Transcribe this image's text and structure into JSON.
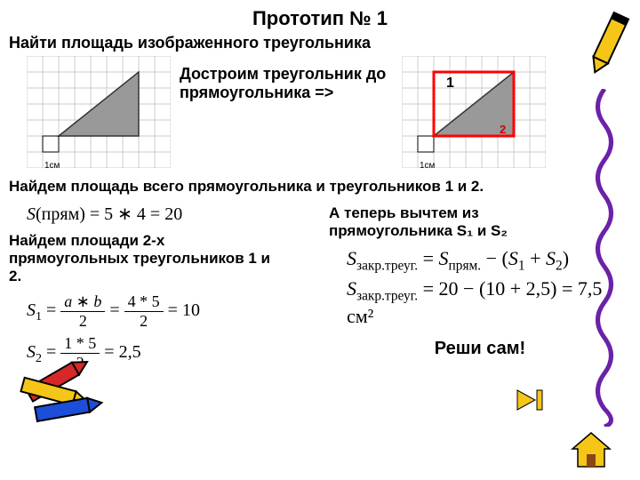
{
  "title": "Прототип № 1",
  "subtitle": "Найти площадь изображенного треугольника",
  "construct_text": "Достроим треугольник до прямоугольника  =>",
  "step1": "Найдем площадь всего прямоугольника и треугольников 1 и 2.",
  "formula_rect": "S(прям) = 5 * 4 = 20",
  "step2": "Найдем площади 2-х прямоугольных треугольников 1 и 2.",
  "step3_a": "А теперь вычтем из",
  "step3_b": "прямоугольника S₁ и S₂",
  "s1_lhs": "S",
  "s1_sub": "1",
  "s1_frac1_num": "a * b",
  "s1_frac1_den": "2",
  "s1_frac2_num": "4 * 5",
  "s1_frac2_den": "2",
  "s1_result": "10",
  "s2_lhs": "S",
  "s2_sub": "2",
  "s2_frac1_num": "1 * 5",
  "s2_frac1_den": "2",
  "s2_result": "2,5",
  "sf1_lhs": "S",
  "sf1_sub": "закр.треуг.",
  "sf1_rhs_a": "S",
  "sf1_rhs_a_sub": "прям.",
  "sf1_rhs_b": "S",
  "sf1_rhs_b_sub": "1",
  "sf1_rhs_c": "S",
  "sf1_rhs_c_sub": "2",
  "sf2_lhs": "S",
  "sf2_sub": "закр.треуг.",
  "sf2_rhs": "20 − (10 + 2,5) = 7,5",
  "unit": "см²",
  "solve": "Реши сам!",
  "grid": {
    "cell": 18,
    "cols": 9,
    "rows": 7,
    "stroke": "#cccccc",
    "tri_fill": "#999999",
    "tri_stroke": "#333333",
    "rect_stroke": "#ff0000",
    "unit_label": "1см",
    "label1": "1",
    "label2": "2"
  },
  "colors": {
    "crayon_yellow": "#f5c518",
    "crayon_red": "#d62828",
    "crayon_blue": "#1d4ed8",
    "squiggle": "#6b21a8",
    "home_fill": "#f5c518",
    "next_fill": "#f5c518"
  }
}
